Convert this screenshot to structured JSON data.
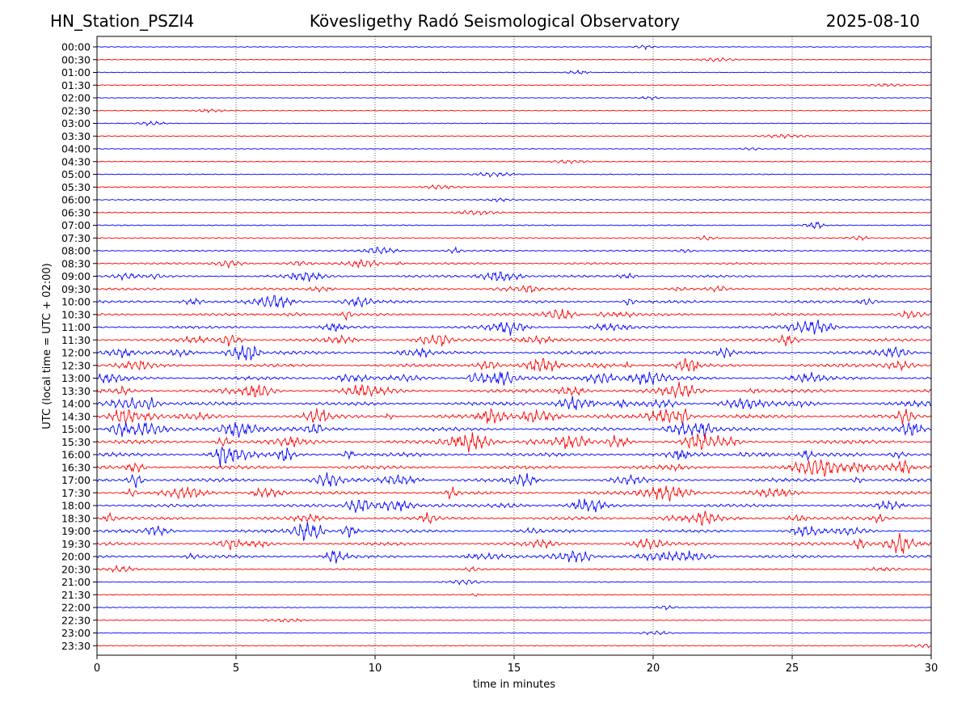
{
  "header": {
    "station": "HN_Station_PSZI4",
    "observatory": "Kövesligethy Radó Seismological Observatory",
    "date": "2025-08-10"
  },
  "chart_data": {
    "type": "line",
    "title": "Kövesligethy Radó Seismological Observatory",
    "xlabel": "time in minutes",
    "ylabel": "UTC (local time = UTC + 02:00)",
    "xlim": [
      0,
      30
    ],
    "x_ticks": [
      "0",
      "5",
      "10",
      "15",
      "20",
      "25",
      "30"
    ],
    "grid": "vertical dotted at 5-minute intervals",
    "row_labels": [
      "00:00",
      "00:30",
      "01:00",
      "01:30",
      "02:00",
      "02:30",
      "03:00",
      "03:30",
      "04:00",
      "04:30",
      "05:00",
      "05:30",
      "06:00",
      "06:30",
      "07:00",
      "07:30",
      "08:00",
      "08:30",
      "09:00",
      "09:30",
      "10:00",
      "10:30",
      "11:00",
      "11:30",
      "12:00",
      "12:30",
      "13:00",
      "13:30",
      "14:00",
      "14:30",
      "15:00",
      "15:30",
      "16:00",
      "16:30",
      "17:00",
      "17:30",
      "18:00",
      "18:30",
      "19:00",
      "19:30",
      "20:00",
      "20:30",
      "21:00",
      "21:30",
      "22:00",
      "22:30",
      "23:00",
      "23:30"
    ],
    "row_colors": [
      "#0000ff",
      "#ff0000"
    ],
    "activity_level": [
      0.05,
      0.04,
      0.05,
      0.04,
      0.04,
      0.06,
      0.05,
      0.05,
      0.06,
      0.06,
      0.08,
      0.1,
      0.1,
      0.1,
      0.12,
      0.12,
      0.22,
      0.3,
      0.38,
      0.4,
      0.45,
      0.45,
      0.45,
      0.5,
      0.6,
      0.6,
      0.62,
      0.65,
      0.65,
      0.68,
      0.7,
      0.7,
      0.7,
      0.65,
      0.6,
      0.55,
      0.55,
      0.55,
      0.55,
      0.55,
      0.5,
      0.2,
      0.08,
      0.06,
      0.06,
      0.05,
      0.05,
      0.06
    ],
    "notes": "Helicorder drum plot: each row is a 30-minute seismogram trace; activity_level is relative trace amplitude (0-1)."
  }
}
